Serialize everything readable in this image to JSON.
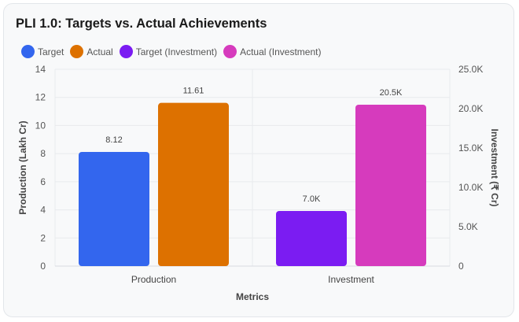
{
  "chart_data": {
    "type": "bar",
    "title": "PLI 1.0: Targets vs. Actual Achievements",
    "categories": [
      "Production",
      "Investment"
    ],
    "xlabel": "Metrics",
    "ylabel_left": "Production (Lakh Cr)",
    "ylabel_right": "Investment (₹ Cr)",
    "ylim_left": [
      0,
      14
    ],
    "ylim_right": [
      0,
      25000
    ],
    "left_ticks": [
      "0",
      "2",
      "4",
      "6",
      "8",
      "10",
      "12",
      "14"
    ],
    "right_ticks": [
      "0",
      "5.0K",
      "10.0K",
      "15.0K",
      "20.0K",
      "25.0K"
    ],
    "grid": true,
    "legend_position": "top-left",
    "series": [
      {
        "name": "Target",
        "color": "#3366ee",
        "axis": "left",
        "values": [
          8.12,
          null
        ],
        "labels": [
          "8.12",
          null
        ]
      },
      {
        "name": "Actual",
        "color": "#dd7100",
        "axis": "left",
        "values": [
          11.61,
          null
        ],
        "labels": [
          "11.61",
          null
        ]
      },
      {
        "name": "Target (Investment)",
        "color": "#7b1cf2",
        "axis": "right",
        "values": [
          null,
          7000
        ],
        "labels": [
          null,
          "7.0K"
        ]
      },
      {
        "name": "Actual (Investment)",
        "color": "#d63bbd",
        "axis": "right",
        "values": [
          null,
          20500
        ],
        "labels": [
          null,
          "20.5K"
        ]
      }
    ]
  }
}
